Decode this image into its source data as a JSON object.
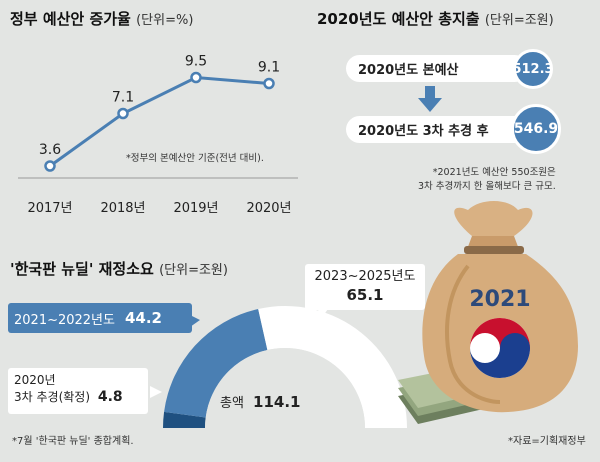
{
  "colors": {
    "accent": "#4a7fb3",
    "background": "#e3e5e3",
    "line": "#4a7fb3"
  },
  "chart_data": [
    {
      "type": "line",
      "title": "정부 예산안 증가율",
      "unit": "(단위=%)",
      "categories": [
        "2017년",
        "2018년",
        "2019년",
        "2020년"
      ],
      "values": [
        3.6,
        7.1,
        9.5,
        9.1
      ],
      "value_labels": [
        "3.6",
        "7.1",
        "9.5",
        "9.1"
      ],
      "ylim": [
        0,
        12
      ],
      "grid": false,
      "note": "*정부의 본예산안 기준(전년 대비)."
    },
    {
      "type": "bar",
      "title": "2020년도 예산안 총지출",
      "unit": "(단위=조원)",
      "categories": [
        "2020년도 본예산",
        "2020년도 3차 추경 후"
      ],
      "values": [
        512.3,
        546.9
      ],
      "value_labels": [
        "512.3",
        "546.9"
      ],
      "note_lines": [
        "*2021년도 예산안 550조원은",
        "3차 추경까지 한 올해보다 큰 규모."
      ]
    },
    {
      "type": "pie",
      "title": "'한국판 뉴딜' 재정소요",
      "unit": "(단위=조원)",
      "slices": [
        {
          "label": "2021~2022년도",
          "value": 44.2,
          "value_label": "44.2"
        },
        {
          "label_lines": [
            "2020년",
            "3차 추경(확정)"
          ],
          "value": 4.8,
          "value_label": "4.8"
        },
        {
          "label": "2023~2025년도",
          "value": 65.1,
          "value_label": "65.1"
        }
      ],
      "total_label": "총액",
      "total_value": "114.1",
      "note": "*7월 '한국판 뉴딜' 종합계획."
    }
  ],
  "bag_label": "2021",
  "source": "*자료=기획재정부"
}
